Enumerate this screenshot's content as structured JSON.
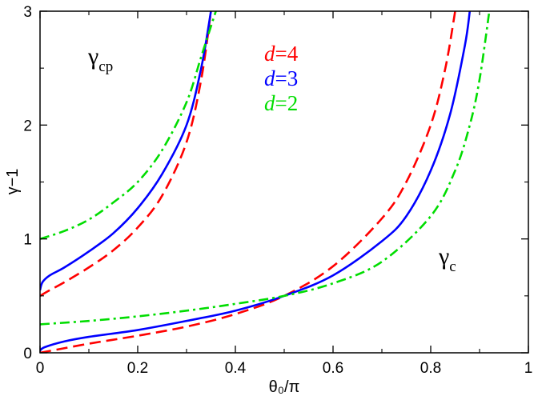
{
  "chart_data": {
    "type": "line",
    "title": "",
    "xlabel": "θ₀/π",
    "ylabel": "γ−1",
    "xlim": [
      0,
      1
    ],
    "ylim": [
      0,
      3
    ],
    "x_ticks": [
      "0",
      "0.2",
      "0.4",
      "0.6",
      "0.8",
      "1"
    ],
    "y_ticks": [
      "0",
      "1",
      "2",
      "3"
    ],
    "grid": false,
    "legend": {
      "placement": "top-center",
      "entries": [
        {
          "label_var": "d",
          "label_val": "=4",
          "color": "#ff0000",
          "style": "dashed"
        },
        {
          "label_var": "d",
          "label_val": "=3",
          "color": "#0000ff",
          "style": "solid"
        },
        {
          "label_var": "d",
          "label_val": "=2",
          "color": "#00dd00",
          "style": "dash-dot"
        }
      ]
    },
    "annotations": [
      {
        "base": "γ",
        "sub": "cp"
      },
      {
        "base": "γ",
        "sub": "c"
      }
    ],
    "series": [
      {
        "legend_ref": "d=4",
        "branch": "cp",
        "color": "#ff0000",
        "style": "dashed",
        "points": [
          [
            0,
            0.5
          ],
          [
            0.02,
            0.55
          ],
          [
            0.05,
            0.62
          ],
          [
            0.1,
            0.75
          ],
          [
            0.15,
            0.9
          ],
          [
            0.2,
            1.1
          ],
          [
            0.25,
            1.38
          ],
          [
            0.3,
            1.85
          ],
          [
            0.33,
            2.4
          ],
          [
            0.35,
            3.0
          ]
        ]
      },
      {
        "legend_ref": "d=3",
        "branch": "cp",
        "color": "#0000ff",
        "style": "solid",
        "points": [
          [
            0,
            0.55
          ],
          [
            0.005,
            0.62
          ],
          [
            0.02,
            0.68
          ],
          [
            0.05,
            0.75
          ],
          [
            0.1,
            0.89
          ],
          [
            0.15,
            1.05
          ],
          [
            0.2,
            1.27
          ],
          [
            0.25,
            1.57
          ],
          [
            0.3,
            2.0
          ],
          [
            0.33,
            2.5
          ],
          [
            0.35,
            3.0
          ]
        ]
      },
      {
        "legend_ref": "d=2",
        "branch": "cp",
        "color": "#00dd00",
        "style": "dash-dot",
        "points": [
          [
            0,
            1.0
          ],
          [
            0.05,
            1.07
          ],
          [
            0.1,
            1.17
          ],
          [
            0.15,
            1.32
          ],
          [
            0.2,
            1.5
          ],
          [
            0.25,
            1.78
          ],
          [
            0.3,
            2.2
          ],
          [
            0.33,
            2.6
          ],
          [
            0.36,
            3.0
          ]
        ]
      },
      {
        "legend_ref": "d=4",
        "branch": "c",
        "color": "#ff0000",
        "style": "dashed",
        "points": [
          [
            0,
            0.0
          ],
          [
            0.1,
            0.08
          ],
          [
            0.2,
            0.15
          ],
          [
            0.3,
            0.23
          ],
          [
            0.4,
            0.34
          ],
          [
            0.5,
            0.5
          ],
          [
            0.6,
            0.76
          ],
          [
            0.7,
            1.18
          ],
          [
            0.75,
            1.5
          ],
          [
            0.8,
            2.0
          ],
          [
            0.83,
            2.5
          ],
          [
            0.85,
            3.0
          ]
        ]
      },
      {
        "legend_ref": "d=3",
        "branch": "c",
        "color": "#0000ff",
        "style": "solid",
        "points": [
          [
            0,
            0.02
          ],
          [
            0.01,
            0.05
          ],
          [
            0.05,
            0.1
          ],
          [
            0.1,
            0.14
          ],
          [
            0.2,
            0.2
          ],
          [
            0.3,
            0.28
          ],
          [
            0.4,
            0.37
          ],
          [
            0.5,
            0.5
          ],
          [
            0.6,
            0.68
          ],
          [
            0.7,
            0.98
          ],
          [
            0.75,
            1.2
          ],
          [
            0.8,
            1.6
          ],
          [
            0.84,
            2.1
          ],
          [
            0.87,
            2.7
          ],
          [
            0.88,
            3.0
          ]
        ]
      },
      {
        "legend_ref": "d=2",
        "branch": "c",
        "color": "#00dd00",
        "style": "dash-dot",
        "points": [
          [
            0,
            0.25
          ],
          [
            0.1,
            0.28
          ],
          [
            0.2,
            0.32
          ],
          [
            0.3,
            0.37
          ],
          [
            0.4,
            0.43
          ],
          [
            0.5,
            0.5
          ],
          [
            0.6,
            0.61
          ],
          [
            0.7,
            0.8
          ],
          [
            0.8,
            1.2
          ],
          [
            0.85,
            1.6
          ],
          [
            0.88,
            2.0
          ],
          [
            0.9,
            2.4
          ],
          [
            0.92,
            3.0
          ]
        ]
      }
    ]
  }
}
